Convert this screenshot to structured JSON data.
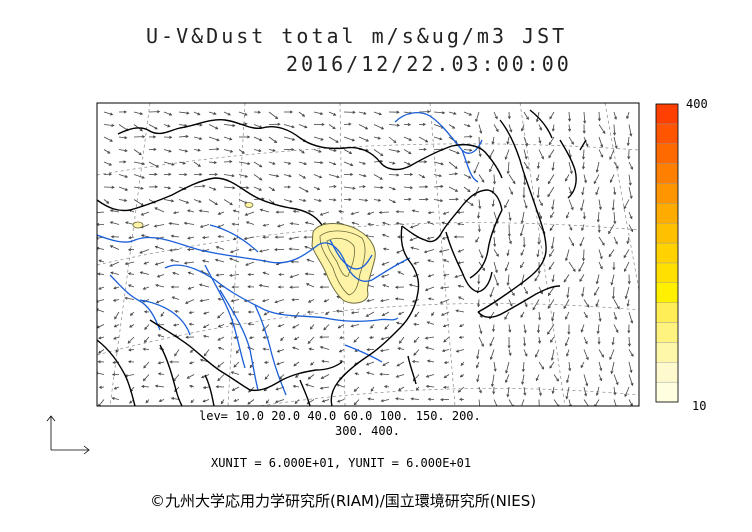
{
  "title": {
    "line1": "U-V&Dust total m/s&ug/m3 JST",
    "line2": "2016/12/22.03:00:00"
  },
  "contour_levels": {
    "line1": "lev= 10.0 20.0 40.0 60.0 100. 150. 200.",
    "line2": "300. 400."
  },
  "vector_units": "XUNIT = 6.000E+01, YUNIT = 6.000E+01",
  "credit": "©九州大学応用力学研究所(RIAM)/国立環境研究所(NIES)",
  "colorbar": {
    "max_label": "400",
    "min_label": "10",
    "colors": [
      "#ffffe0",
      "#fffacd",
      "#fff7a8",
      "#fff380",
      "#ffee55",
      "#fff000",
      "#ffe000",
      "#ffd200",
      "#ffc000",
      "#ffab00",
      "#ff9500",
      "#ff8000",
      "#ff6a00",
      "#ff5500",
      "#ff4000"
    ]
  },
  "map_colors": {
    "coast": "#000000",
    "rivers": "#1a5ed8",
    "dust_fill": "#fff3a8",
    "dust_contour": "#6b6b3a",
    "grid": "#888888",
    "vectors": "#444444"
  }
}
